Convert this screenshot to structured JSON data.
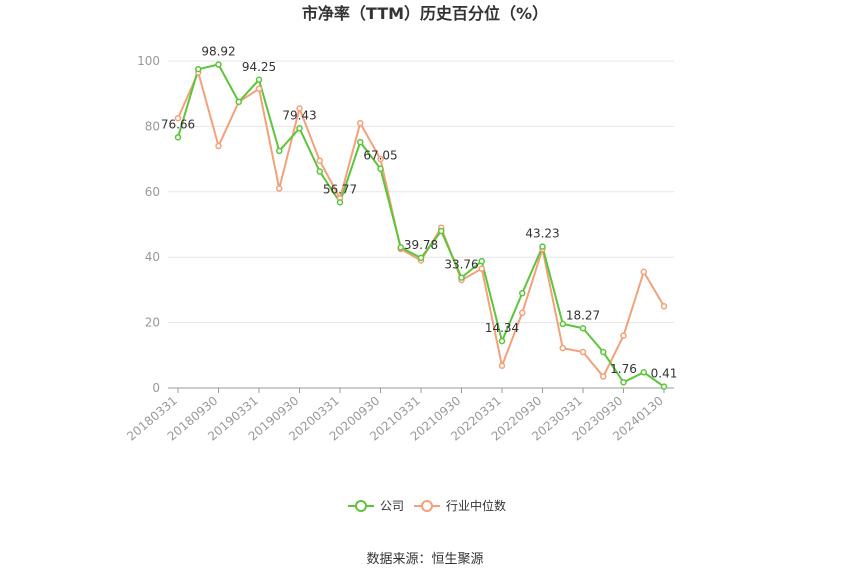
{
  "chart_data": {
    "type": "line",
    "title": "市净率（TTM）历史百分位（%）",
    "xlabel": "",
    "ylabel": "",
    "ylim": [
      0,
      100
    ],
    "yticks": [
      0,
      20,
      40,
      60,
      80,
      100
    ],
    "grid": true,
    "legend_position": "bottom",
    "x": [
      "20180331",
      "20180630",
      "20180930",
      "20181231",
      "20190331",
      "20190630",
      "20190930",
      "20191231",
      "20200331",
      "20200630",
      "20200930",
      "20201231",
      "20210331",
      "20210630",
      "20210930",
      "20211231",
      "20220331",
      "20220630",
      "20220930",
      "20221231",
      "20230331",
      "20230630",
      "20230930",
      "20231231",
      "20240130"
    ],
    "xtick_labels": [
      "20180331",
      "20180930",
      "20190331",
      "20190930",
      "20200331",
      "20200930",
      "20210331",
      "20210930",
      "20220331",
      "20220930",
      "20230331",
      "20230930",
      "20240130"
    ],
    "series": [
      {
        "name": "公司",
        "color": "#5cc53a",
        "values": [
          76.66,
          97.5,
          98.92,
          87.5,
          94.25,
          72.5,
          79.43,
          66.2,
          56.77,
          75.2,
          67.05,
          43.0,
          39.78,
          48.0,
          33.76,
          38.8,
          14.34,
          29.0,
          43.23,
          19.6,
          18.27,
          11.0,
          1.76,
          4.8,
          0.41
        ],
        "labels": {
          "0": "76.66",
          "2": "98.92",
          "4": "94.25",
          "6": "79.43",
          "8": "56.77",
          "10": "67.05",
          "12": "39.78",
          "14": "33.76",
          "16": "14.34",
          "18": "43.23",
          "20": "18.27",
          "22": "1.76",
          "24": "0.41"
        }
      },
      {
        "name": "行业中位数",
        "color": "#f4a07a",
        "values": [
          82.5,
          96.5,
          74.0,
          87.5,
          91.5,
          61.0,
          85.5,
          69.5,
          58.0,
          81.0,
          70.0,
          42.5,
          39.0,
          49.0,
          33.0,
          36.5,
          6.8,
          23.0,
          42.5,
          12.2,
          11.0,
          3.5,
          16.0,
          35.5,
          25.0
        ]
      }
    ],
    "source_text": "数据来源：恒生聚源"
  }
}
